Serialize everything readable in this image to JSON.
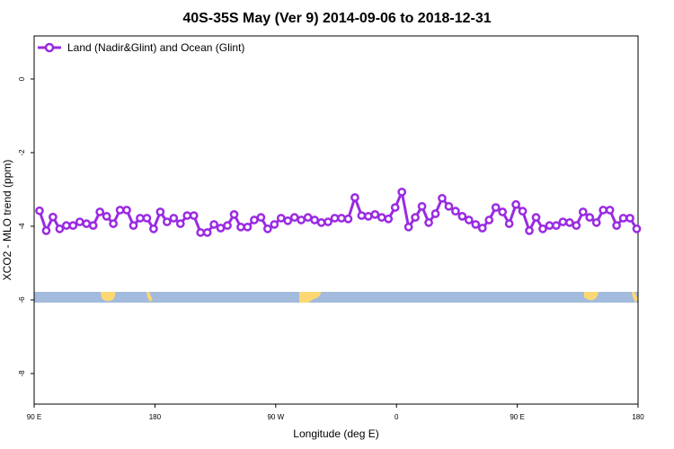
{
  "chart_data": {
    "type": "line",
    "title": "40S-35S May (Ver 9)   2014-09-06 to 2018-12-31",
    "xlabel": "Longitude (deg E)",
    "ylabel": "XCO2 - MLO trend (ppm)",
    "xlim": [
      90,
      540
    ],
    "xticks": [
      {
        "value": 90,
        "label": "90 E"
      },
      180,
      {
        "value": 270,
        "label": "90 W"
      },
      {
        "value": 360,
        "label": "0"
      },
      {
        "value": 450,
        "label": "90 E"
      },
      {
        "value": 540,
        "label": "180"
      }
    ],
    "ylim": [
      -8.83,
      1.17
    ],
    "yticks": [
      0,
      -2,
      -4,
      -6,
      -8
    ],
    "legend": "top-left",
    "x": [
      94,
      99,
      104,
      109,
      114,
      119,
      124,
      129,
      134,
      139,
      144,
      149,
      154,
      159,
      164,
      169,
      174,
      179,
      184,
      189,
      194,
      199,
      204,
      209,
      214,
      219,
      224,
      229,
      234,
      239,
      244,
      249,
      254,
      259,
      264,
      269,
      274,
      279,
      284,
      289,
      294,
      299,
      304,
      309,
      314,
      319,
      324,
      329,
      334,
      339,
      344,
      349,
      354,
      359,
      364,
      369,
      374,
      379,
      384,
      389,
      394,
      399,
      404,
      409,
      414,
      419,
      424,
      429,
      434,
      439,
      444,
      449,
      454,
      459,
      464,
      469,
      474,
      479,
      484,
      489,
      494,
      499,
      504,
      509,
      514,
      519,
      524,
      529,
      534,
      539
    ],
    "series": [
      {
        "name": "Land (Nadir&Glint) and Ocean (Glint)",
        "color": "#9a2be2",
        "values": [
          -3.58,
          -4.12,
          -3.75,
          -4.07,
          -3.98,
          -3.98,
          -3.88,
          -3.93,
          -3.98,
          -3.61,
          -3.73,
          -3.93,
          -3.56,
          -3.56,
          -3.98,
          -3.78,
          -3.78,
          -4.07,
          -3.61,
          -3.88,
          -3.78,
          -3.93,
          -3.71,
          -3.71,
          -4.17,
          -4.17,
          -3.95,
          -4.05,
          -3.98,
          -3.68,
          -4.02,
          -4.02,
          -3.83,
          -3.76,
          -4.07,
          -3.95,
          -3.78,
          -3.85,
          -3.76,
          -3.83,
          -3.76,
          -3.83,
          -3.9,
          -3.88,
          -3.78,
          -3.78,
          -3.8,
          -3.22,
          -3.71,
          -3.73,
          -3.68,
          -3.76,
          -3.8,
          -3.49,
          -3.07,
          -4.02,
          -3.76,
          -3.46,
          -3.9,
          -3.66,
          -3.24,
          -3.46,
          -3.59,
          -3.73,
          -3.83,
          -3.95,
          -4.05,
          -3.83,
          -3.49,
          -3.61,
          -3.93,
          -3.41,
          -3.59,
          -4.12,
          -3.76,
          -4.07,
          -3.98,
          -3.98,
          -3.88,
          -3.9,
          -3.98,
          -3.61,
          -3.76,
          -3.9,
          -3.56,
          -3.56,
          -3.98,
          -3.78,
          -3.78,
          -4.07
        ]
      }
    ]
  }
}
